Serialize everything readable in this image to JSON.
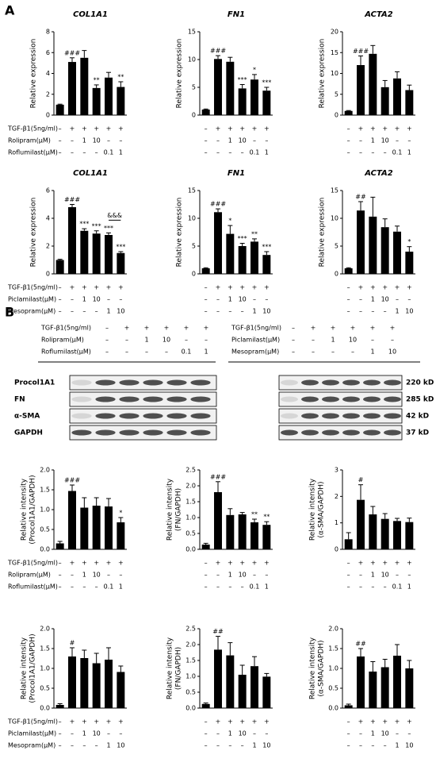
{
  "panels": [
    "A",
    "B"
  ],
  "treatments": [
    {
      "rows": [
        {
          "label": "TGF-β1(5ng/ml)",
          "marks": [
            "–",
            "+",
            "+",
            "+",
            "+",
            "+"
          ]
        },
        {
          "label": "Rolipram(μM)",
          "marks": [
            "–",
            "–",
            "1",
            "10",
            "–",
            "–"
          ]
        },
        {
          "label": "Roflumilast(μM)",
          "marks": [
            "–",
            "–",
            "–",
            "–",
            "0.1",
            "1"
          ]
        }
      ]
    },
    {
      "rows": [
        {
          "label": "TGF-β1(5ng/ml)",
          "marks": [
            "–",
            "+",
            "+",
            "+",
            "+",
            "+"
          ]
        },
        {
          "label": "Piclamilast(μM)",
          "marks": [
            "–",
            "–",
            "1",
            "10",
            "–",
            "–"
          ]
        },
        {
          "label": "Mesopram(μM)",
          "marks": [
            "–",
            "–",
            "–",
            "–",
            "1",
            "10"
          ]
        }
      ]
    }
  ],
  "blot": {
    "proteins": [
      "Procol1A1",
      "FN",
      "α-SMA",
      "GAPDH"
    ],
    "sizes": [
      "220 kD",
      "285 kD",
      "42 kD",
      "37 kD"
    ]
  },
  "chart_data": [
    {
      "type": "bar",
      "title": "COL1A1",
      "ylabel": "Relative expression",
      "color": "#000000",
      "values": [
        1.0,
        5.1,
        5.5,
        2.6,
        3.6,
        2.7
      ],
      "errors": [
        0.05,
        0.4,
        0.7,
        0.3,
        0.5,
        0.5
      ],
      "annotations": [
        null,
        "###",
        null,
        "**",
        null,
        "**"
      ],
      "ylim": [
        0,
        8
      ],
      "yticks": [
        0,
        2,
        4,
        6,
        8
      ]
    },
    {
      "type": "bar",
      "title": "FN1",
      "ylabel": "Relative expression",
      "color": "#000000",
      "values": [
        1.0,
        10.1,
        9.6,
        4.8,
        6.4,
        4.4
      ],
      "errors": [
        0.1,
        0.6,
        0.8,
        0.7,
        0.9,
        0.6
      ],
      "annotations": [
        null,
        "###",
        null,
        "***",
        "*",
        "***"
      ],
      "ylim": [
        0,
        15
      ],
      "yticks": [
        0,
        5,
        10,
        15
      ]
    },
    {
      "type": "bar",
      "title": "ACTA2",
      "ylabel": "Relative expression",
      "color": "#000000",
      "values": [
        1.0,
        12.0,
        14.7,
        6.7,
        8.8,
        6.0
      ],
      "errors": [
        0.1,
        2.2,
        2.0,
        1.6,
        1.6,
        1.2
      ],
      "annotations": [
        null,
        "###",
        null,
        null,
        null,
        null
      ],
      "ylim": [
        0,
        20
      ],
      "yticks": [
        0,
        5,
        10,
        15,
        20
      ]
    },
    {
      "type": "bar",
      "title": "COL1A1",
      "ylabel": "Relative expression",
      "color": "#000000",
      "values": [
        1.0,
        4.8,
        3.1,
        2.9,
        2.8,
        1.5
      ],
      "errors": [
        0.05,
        0.2,
        0.15,
        0.2,
        0.15,
        0.1
      ],
      "annotations": [
        null,
        "###",
        "***",
        "***",
        "***",
        "***"
      ],
      "bracket_label": "&&&",
      "ylim": [
        0,
        6
      ],
      "yticks": [
        0,
        2,
        4,
        6
      ]
    },
    {
      "type": "bar",
      "title": "FN1",
      "ylabel": "Relative expression",
      "color": "#000000",
      "values": [
        1.0,
        11.1,
        7.2,
        5.0,
        5.8,
        3.4
      ],
      "errors": [
        0.1,
        0.6,
        1.5,
        0.5,
        0.5,
        0.6
      ],
      "annotations": [
        null,
        "###",
        "*",
        "***",
        "**",
        "***"
      ],
      "ylim": [
        0,
        15
      ],
      "yticks": [
        0,
        5,
        10,
        15
      ]
    },
    {
      "type": "bar",
      "title": "ACTA2",
      "ylabel": "Relative expression",
      "color": "#000000",
      "values": [
        1.0,
        11.4,
        10.3,
        8.4,
        7.6,
        4.0
      ],
      "errors": [
        0.1,
        1.6,
        3.5,
        1.5,
        1.0,
        0.9
      ],
      "annotations": [
        null,
        "##",
        null,
        null,
        null,
        "*"
      ],
      "ylim": [
        0,
        15
      ],
      "yticks": [
        0,
        5,
        10,
        15
      ]
    },
    {
      "type": "bar",
      "ylabel": [
        "Relative intensity",
        "(Procol1A1/GAPDH)"
      ],
      "color": "#000000",
      "values": [
        0.15,
        1.47,
        1.05,
        1.1,
        1.08,
        0.68
      ],
      "errors": [
        0.05,
        0.15,
        0.25,
        0.2,
        0.2,
        0.12
      ],
      "annotations": [
        null,
        "###",
        null,
        null,
        null,
        "*"
      ],
      "ylim": [
        0,
        2
      ],
      "yticks": [
        {
          "value": 0,
          "label": "0.0"
        },
        0.5,
        {
          "value": 1,
          "label": "1.0"
        },
        1.5,
        {
          "value": 2,
          "label": "2.0"
        }
      ]
    },
    {
      "type": "bar",
      "ylabel": [
        "Relative intensity",
        "(FN/GAPDH)"
      ],
      "color": "#000000",
      "values": [
        0.15,
        1.8,
        1.08,
        1.1,
        0.85,
        0.77
      ],
      "errors": [
        0.04,
        0.33,
        0.2,
        0.06,
        0.1,
        0.1
      ],
      "annotations": [
        null,
        "###",
        null,
        null,
        "**",
        "**"
      ],
      "ylim": [
        0,
        2.5
      ],
      "yticks": [
        {
          "value": 0,
          "label": "0.0"
        },
        0.5,
        {
          "value": 1,
          "label": "1.0"
        },
        1.5,
        {
          "value": 2,
          "label": "2.0"
        },
        2.5
      ]
    },
    {
      "type": "bar",
      "ylabel": [
        "Relative intensity",
        "(α-SMA/GAPDH)"
      ],
      "color": "#000000",
      "values": [
        0.38,
        1.87,
        1.32,
        1.15,
        1.07,
        1.03
      ],
      "errors": [
        0.25,
        0.57,
        0.3,
        0.2,
        0.1,
        0.15
      ],
      "annotations": [
        null,
        "#",
        null,
        null,
        null,
        null
      ],
      "ylim": [
        0,
        3
      ],
      "yticks": [
        0,
        1,
        2,
        3
      ]
    },
    {
      "type": "bar",
      "ylabel": [
        "Relative intensity",
        "(Procol1A1/GAPDH)"
      ],
      "color": "#000000",
      "values": [
        0.08,
        1.3,
        1.26,
        1.13,
        1.22,
        0.91
      ],
      "errors": [
        0.03,
        0.22,
        0.2,
        0.25,
        0.3,
        0.15
      ],
      "annotations": [
        null,
        "#",
        null,
        null,
        null,
        null
      ],
      "ylim": [
        0,
        2
      ],
      "yticks": [
        {
          "value": 0,
          "label": "0.0"
        },
        0.5,
        {
          "value": 1,
          "label": "1.0"
        },
        1.5,
        {
          "value": 2,
          "label": "2.0"
        }
      ]
    },
    {
      "type": "bar",
      "ylabel": [
        "Relative intensity",
        "(FN/GAPDH)"
      ],
      "color": "#000000",
      "values": [
        0.13,
        1.84,
        1.66,
        1.05,
        1.32,
        0.99
      ],
      "errors": [
        0.03,
        0.42,
        0.4,
        0.3,
        0.3,
        0.1
      ],
      "annotations": [
        null,
        "##",
        null,
        null,
        null,
        null
      ],
      "ylim": [
        0,
        2.5
      ],
      "yticks": [
        {
          "value": 0,
          "label": "0.0"
        },
        0.5,
        {
          "value": 1,
          "label": "1.0"
        },
        1.5,
        {
          "value": 2,
          "label": "2.0"
        },
        2.5
      ]
    },
    {
      "type": "bar",
      "ylabel": [
        "Relative intensity",
        "(α-SMA/GAPDH)"
      ],
      "color": "#000000",
      "values": [
        0.07,
        1.3,
        0.92,
        1.03,
        1.32,
        1.0
      ],
      "errors": [
        0.03,
        0.2,
        0.25,
        0.2,
        0.28,
        0.2
      ],
      "annotations": [
        null,
        "##",
        null,
        null,
        null,
        null
      ],
      "ylim": [
        0,
        2
      ],
      "yticks": [
        {
          "value": 0,
          "label": "0.0"
        },
        0.5,
        {
          "value": 1,
          "label": "1.0"
        },
        1.5,
        {
          "value": 2,
          "label": "2.0"
        }
      ]
    }
  ]
}
